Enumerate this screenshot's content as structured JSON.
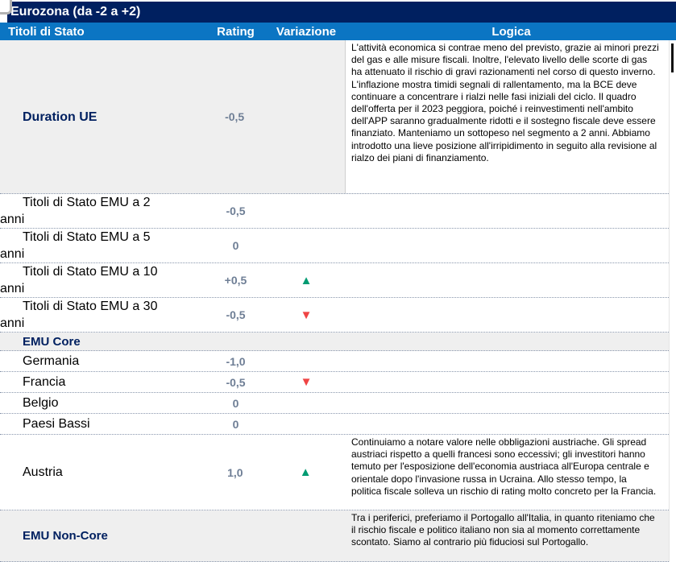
{
  "title": "Eurozona (da -2 a +2)",
  "columns": {
    "titoli": "Titoli di Stato",
    "rating": "Rating",
    "variazione": "Variazione",
    "logica": "Logica"
  },
  "colors": {
    "title_bar": "#002060",
    "header_bar": "#0b75c3",
    "section_text": "#002060",
    "rating_text": "#6e7e95",
    "row_shade": "#efefef",
    "arrow_up": "#009b72",
    "arrow_down": "#ef4444"
  },
  "rows": [
    {
      "label": "Duration UE",
      "rating": "-0,5",
      "logica": "L'attività economica si contrae meno del previsto, grazie ai minori prezzi del gas e alle misure fiscali. Inoltre, l'elevato livello delle scorte di gas ha attenuato il rischio di gravi razionamenti nel corso di questo inverno.\nL'inflazione mostra timidi segnali di rallentamento, ma la BCE deve continuare a concentrare i rialzi nelle fasi iniziali del ciclo. Il quadro dell'offerta per il 2023 peggiora, poiché i reinvestimenti nell'ambito dell'APP saranno gradualmente ridotti e il sostegno fiscale deve essere finanziato. Manteniamo un sottopeso nel segmento a 2 anni. Abbiamo introdotto una lieve posizione all'irripidimento in seguito alla revisione al rialzo dei piani di finanziamento."
    },
    {
      "label": "Titoli di Stato EMU a 2 anni",
      "rating": "-0,5"
    },
    {
      "label": "Titoli di Stato EMU a 5 anni",
      "rating": "0"
    },
    {
      "label": "Titoli di Stato EMU a 10 anni",
      "rating": "+0,5",
      "variazione": "▲"
    },
    {
      "label": "Titoli di Stato EMU a 30 anni",
      "rating": "-0,5",
      "variazione": "▼"
    },
    {
      "label": "EMU Core"
    },
    {
      "label": "Germania",
      "rating": "-1,0"
    },
    {
      "label": "Francia",
      "rating": "-0,5",
      "variazione": "▼"
    },
    {
      "label": "Belgio",
      "rating": "0"
    },
    {
      "label": "Paesi Bassi",
      "rating": "0"
    },
    {
      "label": "Austria",
      "rating": "1,0",
      "variazione": "▲",
      "logica": "Continuiamo a notare valore nelle obbligazioni austriache. Gli spread austriaci rispetto a quelli francesi sono eccessivi; gli investitori hanno temuto per l'esposizione dell'economia austriaca all'Europa centrale e orientale dopo l'invasione russa in Ucraina. Allo stesso tempo, la politica fiscale solleva un rischio di rating molto concreto per la Francia."
    },
    {
      "label": "EMU Non-Core",
      "logica": "Tra i periferici, preferiamo il Portogallo all'Italia, in quanto riteniamo che il rischio fiscale e politico italiano non sia al momento correttamente scontato. Siamo al contrario più fiduciosi sul Portogallo."
    }
  ]
}
